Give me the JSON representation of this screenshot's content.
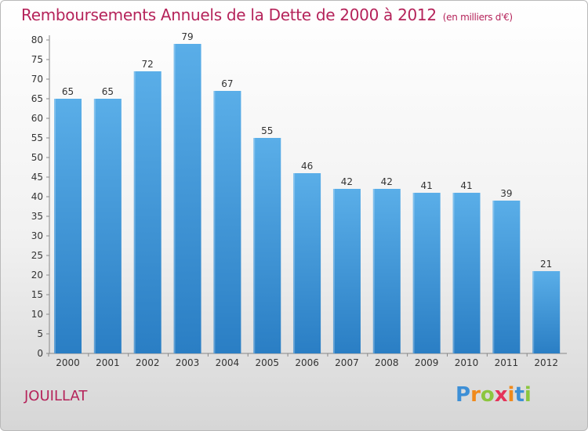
{
  "chart_data": {
    "type": "bar",
    "title": "Remboursements Annuels de la Dette de 2000 à 2012",
    "subtitle": "(en milliers d'€)",
    "categories": [
      "2000",
      "2001",
      "2002",
      "2003",
      "2004",
      "2005",
      "2006",
      "2007",
      "2008",
      "2009",
      "2010",
      "2011",
      "2012"
    ],
    "values": [
      65,
      65,
      72,
      79,
      67,
      55,
      46,
      42,
      42,
      41,
      41,
      39,
      21
    ],
    "ylim": [
      0,
      80
    ],
    "yticks": [
      0,
      5,
      10,
      15,
      20,
      25,
      30,
      35,
      40,
      45,
      50,
      55,
      60,
      65,
      70,
      75,
      80
    ],
    "grid": false,
    "colors": {
      "bar_top": "#5aaee8",
      "bar_bottom": "#2a7ec4",
      "title": "#b5235a"
    }
  },
  "footer": {
    "commune": "JOUILLAT",
    "logo_letters": [
      "P",
      "r",
      "o",
      "x",
      "i",
      "t",
      "i"
    ],
    "logo_colors": [
      "#3d8fd6",
      "#f08a1c",
      "#8cc63f",
      "#e5335a",
      "#f08a1c",
      "#3d8fd6",
      "#8cc63f"
    ]
  }
}
